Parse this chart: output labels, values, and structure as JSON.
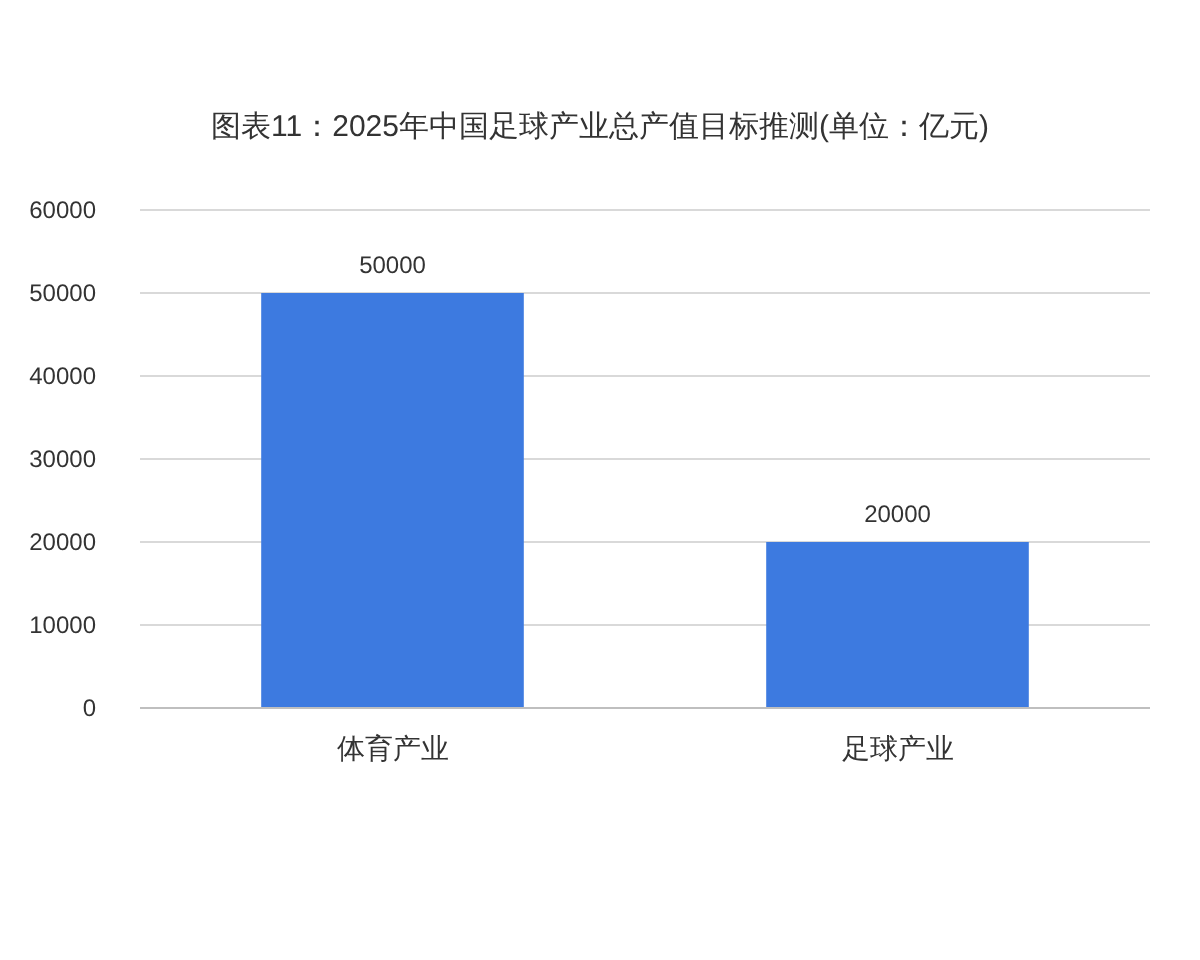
{
  "chart_data": {
    "type": "bar",
    "title": "图表11：2025年中国足球产业总产值目标推测(单位：亿元)",
    "categories": [
      "体育产业",
      "足球产业"
    ],
    "values": [
      50000,
      20000
    ],
    "color": "#3d7ae0",
    "ylim": [
      0,
      60000
    ],
    "yticks": [
      0,
      10000,
      20000,
      30000,
      40000,
      50000,
      60000
    ],
    "grid": "y",
    "data_labels": true
  }
}
